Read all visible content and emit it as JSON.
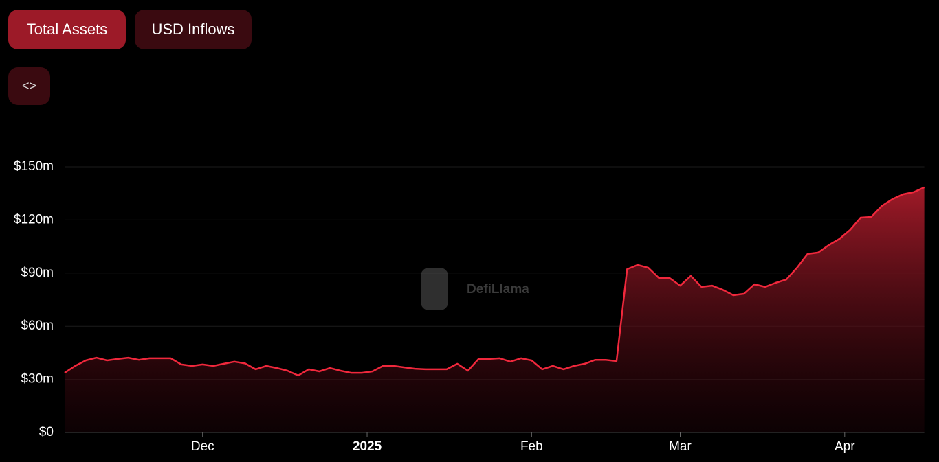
{
  "tabs": [
    "Total Assets",
    "USD Inflows"
  ],
  "embed_button": "<>",
  "watermark": "DefiLlama",
  "chart_data": {
    "type": "area",
    "x": [
      0,
      2,
      4,
      6,
      8,
      10,
      12,
      14,
      16,
      18,
      20,
      22,
      24,
      26,
      28,
      30,
      32,
      34,
      36,
      38,
      40,
      42,
      44,
      46,
      48,
      50,
      52,
      54,
      56,
      58,
      60,
      62,
      64,
      66,
      68,
      70,
      72,
      74,
      76,
      78,
      80,
      82,
      84,
      86,
      88,
      90,
      92,
      94,
      96,
      98,
      100,
      102,
      104,
      106,
      108,
      110,
      112,
      114,
      116,
      118,
      120,
      122,
      124,
      126,
      128,
      130,
      132,
      134,
      136,
      138,
      140,
      142,
      144,
      146,
      148,
      150,
      152,
      154,
      156,
      158,
      160,
      162
    ],
    "series": [
      {
        "name": "Total Assets",
        "color": "#f0283c",
        "values": [
          33.7,
          37.6,
          40.7,
          42.2,
          40.7,
          41.5,
          42.2,
          41,
          41.9,
          41.9,
          41.9,
          38.4,
          37.6,
          38.4,
          37.6,
          38.8,
          40,
          39,
          35.7,
          37.6,
          36.4,
          34.9,
          32.2,
          35.7,
          34.5,
          36.4,
          34.9,
          33.7,
          33.7,
          34.5,
          37.6,
          37.6,
          36.8,
          36,
          35.7,
          35.7,
          35.7,
          38.8,
          34.9,
          41.5,
          41.5,
          41.9,
          40,
          41.9,
          40.7,
          35.7,
          37.6,
          35.7,
          37.6,
          38.8,
          41,
          41,
          40.3,
          92.2,
          94.6,
          93,
          87.2,
          87.2,
          82.9,
          88.4,
          82.2,
          82.9,
          80.6,
          77.5,
          78.3,
          83.7,
          82.2,
          84.5,
          86.4,
          93,
          100.8,
          101.6,
          105.8,
          109.3,
          114.3,
          121.3,
          121.7,
          127.9,
          131.8,
          134.5,
          135.7,
          138.4
        ]
      }
    ],
    "xlim": [
      0,
      162
    ],
    "xticks": [
      {
        "value": 26,
        "label": "Dec"
      },
      {
        "value": 57,
        "label": "2025"
      },
      {
        "value": 88,
        "label": "Feb"
      },
      {
        "value": 116,
        "label": "Mar"
      },
      {
        "value": 147,
        "label": "Apr"
      }
    ],
    "ylim": [
      0,
      150
    ],
    "yticks": [
      {
        "value": 0,
        "label": "$0"
      },
      {
        "value": 30,
        "label": "$30m"
      },
      {
        "value": 60,
        "label": "$60m"
      },
      {
        "value": 90,
        "label": "$90m"
      },
      {
        "value": 120,
        "label": "$120m"
      },
      {
        "value": 150,
        "label": "$150m"
      }
    ],
    "grid": true
  }
}
